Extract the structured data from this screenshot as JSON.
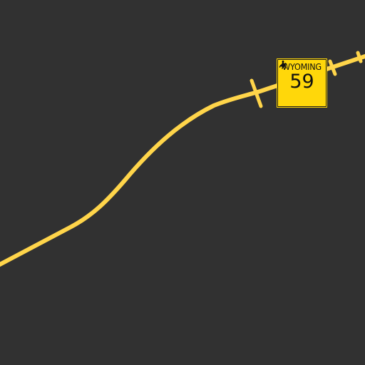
{
  "map": {
    "background_color": "#313131",
    "road_color": "#ffd54a",
    "route_shield": {
      "state": "WYOMING",
      "number": "59",
      "fill_color": "#ffd70a",
      "emblem": "bucking-horse-rider-icon"
    }
  }
}
